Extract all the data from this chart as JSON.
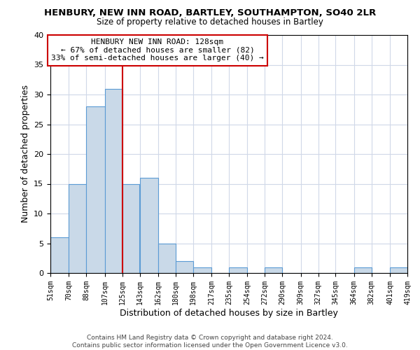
{
  "title": "HENBURY, NEW INN ROAD, BARTLEY, SOUTHAMPTON, SO40 2LR",
  "subtitle": "Size of property relative to detached houses in Bartley",
  "xlabel": "Distribution of detached houses by size in Bartley",
  "ylabel": "Number of detached properties",
  "bin_edges": [
    51,
    70,
    88,
    107,
    125,
    143,
    162,
    180,
    198,
    217,
    235,
    254,
    272,
    290,
    309,
    327,
    345,
    364,
    382,
    401,
    419
  ],
  "counts": [
    6,
    15,
    28,
    31,
    15,
    16,
    5,
    2,
    1,
    0,
    1,
    0,
    1,
    0,
    0,
    0,
    0,
    1,
    0,
    1
  ],
  "bar_color": "#c9d9e8",
  "bar_edge_color": "#5b9bd5",
  "vline_x": 125,
  "vline_color": "#cc0000",
  "annotation_title": "HENBURY NEW INN ROAD: 128sqm",
  "annotation_line2": "← 67% of detached houses are smaller (82)",
  "annotation_line3": "33% of semi-detached houses are larger (40) →",
  "annotation_box_color": "#cc0000",
  "ylim": [
    0,
    40
  ],
  "yticks": [
    0,
    5,
    10,
    15,
    20,
    25,
    30,
    35,
    40
  ],
  "tick_labels": [
    "51sqm",
    "70sqm",
    "88sqm",
    "107sqm",
    "125sqm",
    "143sqm",
    "162sqm",
    "180sqm",
    "198sqm",
    "217sqm",
    "235sqm",
    "254sqm",
    "272sqm",
    "290sqm",
    "309sqm",
    "327sqm",
    "345sqm",
    "364sqm",
    "382sqm",
    "401sqm",
    "419sqm"
  ],
  "footer_line1": "Contains HM Land Registry data © Crown copyright and database right 2024.",
  "footer_line2": "Contains public sector information licensed under the Open Government Licence v3.0.",
  "background_color": "#ffffff",
  "grid_color": "#d0d8e8"
}
